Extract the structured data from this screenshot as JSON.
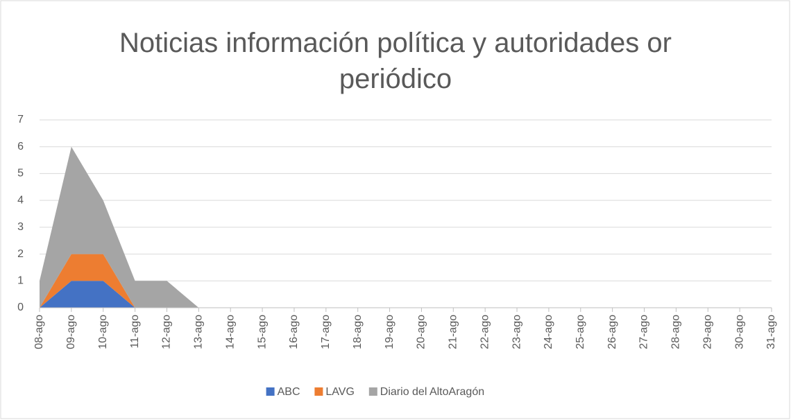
{
  "chart_data": {
    "type": "stacked_area",
    "title": "Noticias información política y autoridades or periódico",
    "categories": [
      "08-ago",
      "09-ago",
      "10-ago",
      "11-ago",
      "12-ago",
      "13-ago",
      "14-ago",
      "15-ago",
      "16-ago",
      "17-ago",
      "18-ago",
      "19-ago",
      "20-ago",
      "21-ago",
      "22-ago",
      "23-ago",
      "24-ago",
      "25-ago",
      "26-ago",
      "27-ago",
      "28-ago",
      "29-ago",
      "30-ago",
      "31-ago"
    ],
    "series": [
      {
        "name": "ABC",
        "color": "#4472c4",
        "values": [
          0,
          1,
          1,
          0,
          null,
          null,
          null,
          null,
          null,
          null,
          null,
          null,
          null,
          null,
          null,
          null,
          null,
          null,
          null,
          null,
          null,
          null,
          null,
          null
        ]
      },
      {
        "name": "LAVG",
        "color": "#ed7d31",
        "values": [
          0,
          1,
          1,
          0,
          null,
          null,
          null,
          null,
          null,
          null,
          null,
          null,
          null,
          null,
          null,
          null,
          null,
          null,
          null,
          null,
          null,
          null,
          null,
          null
        ]
      },
      {
        "name": "Diario del AltoAragón",
        "color": "#a5a5a5",
        "values": [
          1,
          4,
          2,
          1,
          1,
          0,
          null,
          null,
          null,
          null,
          null,
          null,
          null,
          null,
          null,
          null,
          null,
          null,
          null,
          null,
          null,
          null,
          null,
          null
        ]
      }
    ],
    "ylim": [
      0,
      7
    ],
    "yticks": [
      0,
      1,
      2,
      3,
      4,
      5,
      6,
      7
    ],
    "grid": true,
    "legend": "bottom"
  }
}
